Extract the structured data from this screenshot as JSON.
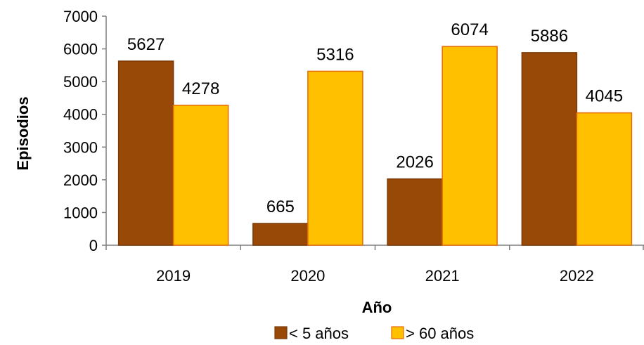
{
  "chart_data": {
    "type": "bar",
    "title": "",
    "xlabel": "Año",
    "ylabel": "Episodios",
    "categories": [
      "2019",
      "2020",
      "2021",
      "2022"
    ],
    "series": [
      {
        "name": "< 5 años",
        "values": [
          5627,
          665,
          2026,
          5886
        ],
        "color": "#984807",
        "border": "#7a3a06"
      },
      {
        "name": "> 60 años",
        "values": [
          4278,
          5316,
          6074,
          4045
        ],
        "color": "#FFC000",
        "border": "#E36C09"
      }
    ],
    "ylim": [
      0,
      7000
    ],
    "yticks": [
      "0",
      "1000",
      "2000",
      "3000",
      "4000",
      "5000",
      "6000",
      "7000"
    ],
    "grid": false,
    "legend_position": "bottom"
  }
}
